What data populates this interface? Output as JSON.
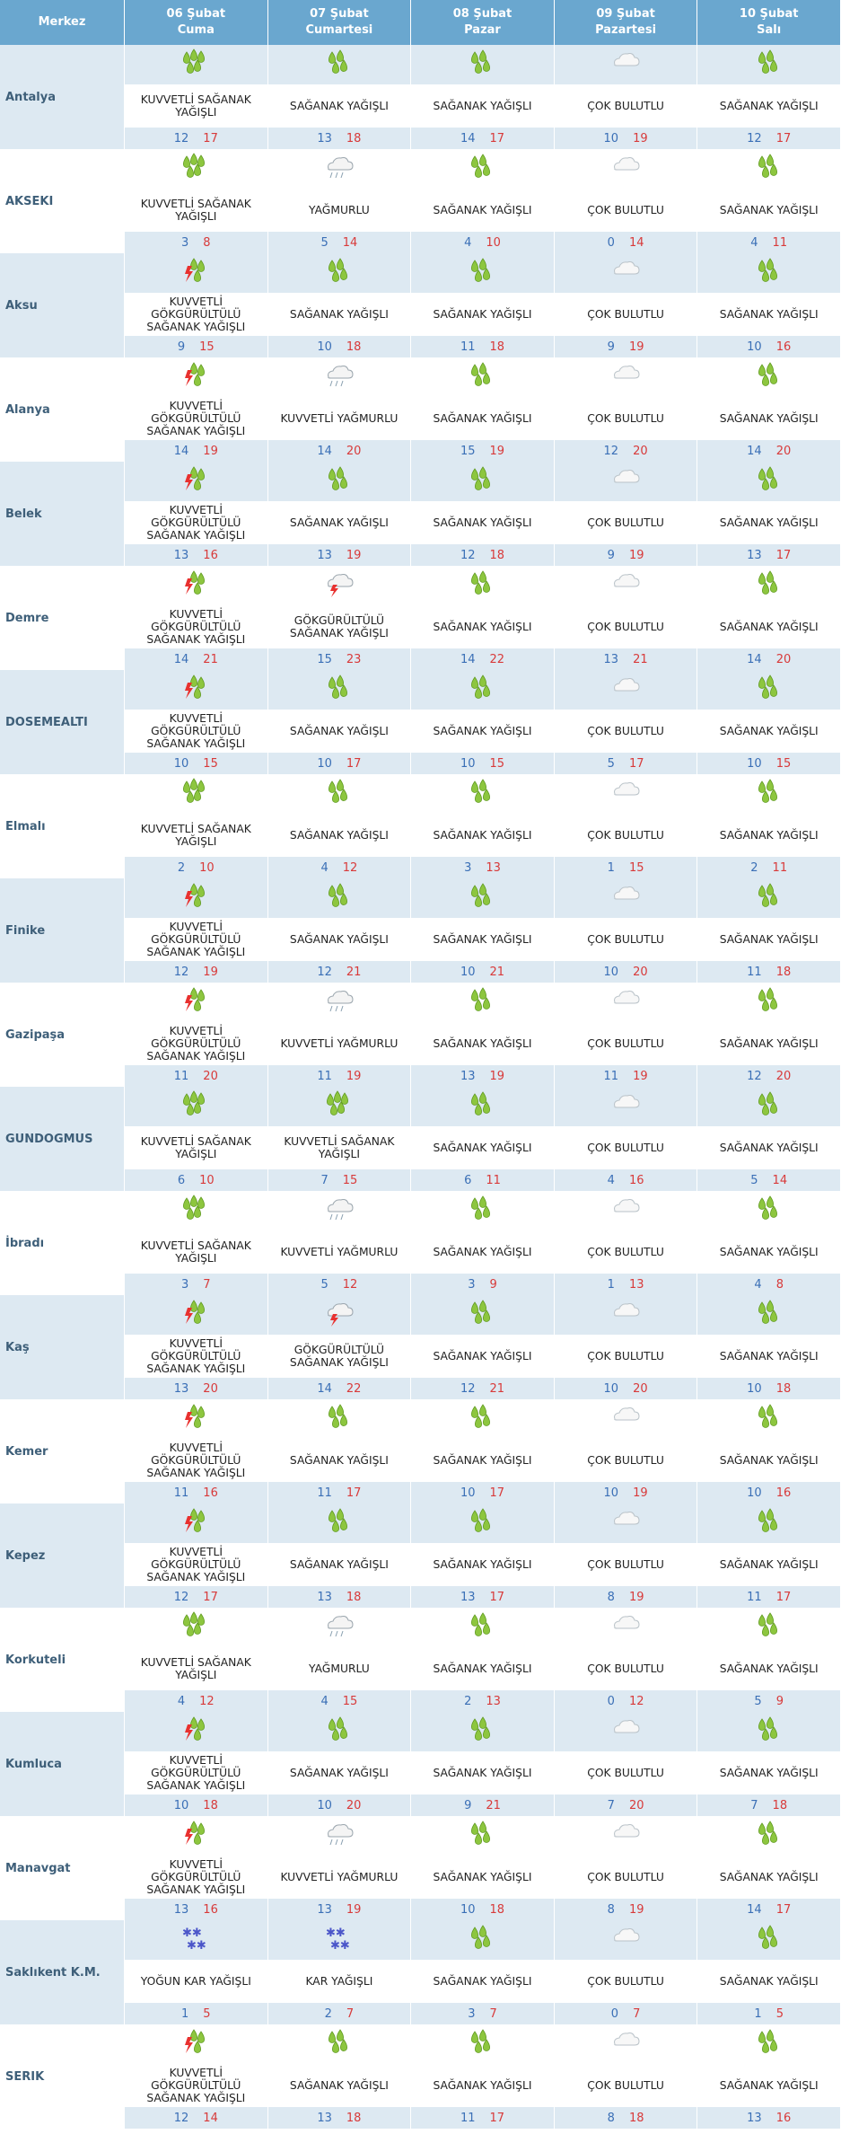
{
  "header": {
    "merkez": "Merkez",
    "days": [
      {
        "date": "06 Şubat",
        "day": "Cuma"
      },
      {
        "date": "07 Şubat",
        "day": "Cumartesi"
      },
      {
        "date": "08 Şubat",
        "day": "Pazar"
      },
      {
        "date": "09 Şubat",
        "day": "Pazartesi"
      },
      {
        "date": "10 Şubat",
        "day": "Salı"
      }
    ]
  },
  "colors": {
    "header_bg": "#6aa7cf",
    "row_shade": "#dde9f2",
    "min_temp": "#3a6fb6",
    "max_temp": "#d83a3a",
    "city": "#3e5f79"
  },
  "rows": [
    {
      "city": "Antalya",
      "days": [
        {
          "icon": "heavy-shower-icon",
          "desc": "KUVVETLİ SAĞANAK YAĞIŞLI",
          "min": "12",
          "max": "17"
        },
        {
          "icon": "shower-icon",
          "desc": "SAĞANAK YAĞIŞLI",
          "min": "13",
          "max": "18"
        },
        {
          "icon": "shower-icon",
          "desc": "SAĞANAK YAĞIŞLI",
          "min": "14",
          "max": "17"
        },
        {
          "icon": "cloudy-icon",
          "desc": "ÇOK BULUTLU",
          "min": "10",
          "max": "19"
        },
        {
          "icon": "shower-icon",
          "desc": "SAĞANAK YAĞIŞLI",
          "min": "12",
          "max": "17"
        }
      ]
    },
    {
      "city": "AKSEKI",
      "days": [
        {
          "icon": "heavy-shower-icon",
          "desc": "KUVVETLİ SAĞANAK YAĞIŞLI",
          "min": "3",
          "max": "8"
        },
        {
          "icon": "rain-icon",
          "desc": "YAĞMURLU",
          "min": "5",
          "max": "14"
        },
        {
          "icon": "shower-icon",
          "desc": "SAĞANAK YAĞIŞLI",
          "min": "4",
          "max": "10"
        },
        {
          "icon": "cloudy-icon",
          "desc": "ÇOK BULUTLU",
          "min": "0",
          "max": "14"
        },
        {
          "icon": "shower-icon",
          "desc": "SAĞANAK YAĞIŞLI",
          "min": "4",
          "max": "11"
        }
      ]
    },
    {
      "city": "Aksu",
      "days": [
        {
          "icon": "thunder-shower-icon",
          "desc": "KUVVETLİ GÖKGÜRÜLTÜLÜ SAĞANAK YAĞIŞLI",
          "min": "9",
          "max": "15"
        },
        {
          "icon": "shower-icon",
          "desc": "SAĞANAK YAĞIŞLI",
          "min": "10",
          "max": "18"
        },
        {
          "icon": "shower-icon",
          "desc": "SAĞANAK YAĞIŞLI",
          "min": "11",
          "max": "18"
        },
        {
          "icon": "cloudy-icon",
          "desc": "ÇOK BULUTLU",
          "min": "9",
          "max": "19"
        },
        {
          "icon": "shower-icon",
          "desc": "SAĞANAK YAĞIŞLI",
          "min": "10",
          "max": "16"
        }
      ]
    },
    {
      "city": "Alanya",
      "days": [
        {
          "icon": "thunder-shower-icon",
          "desc": "KUVVETLİ GÖKGÜRÜLTÜLÜ SAĞANAK YAĞIŞLI",
          "min": "14",
          "max": "19"
        },
        {
          "icon": "rain-icon",
          "desc": "KUVVETLİ YAĞMURLU",
          "min": "14",
          "max": "20"
        },
        {
          "icon": "shower-icon",
          "desc": "SAĞANAK YAĞIŞLI",
          "min": "15",
          "max": "19"
        },
        {
          "icon": "cloudy-icon",
          "desc": "ÇOK BULUTLU",
          "min": "12",
          "max": "20"
        },
        {
          "icon": "shower-icon",
          "desc": "SAĞANAK YAĞIŞLI",
          "min": "14",
          "max": "20"
        }
      ]
    },
    {
      "city": "Belek",
      "days": [
        {
          "icon": "thunder-shower-icon",
          "desc": "KUVVETLİ GÖKGÜRÜLTÜLÜ SAĞANAK YAĞIŞLI",
          "min": "13",
          "max": "16"
        },
        {
          "icon": "shower-icon",
          "desc": "SAĞANAK YAĞIŞLI",
          "min": "13",
          "max": "19"
        },
        {
          "icon": "shower-icon",
          "desc": "SAĞANAK YAĞIŞLI",
          "min": "12",
          "max": "18"
        },
        {
          "icon": "cloudy-icon",
          "desc": "ÇOK BULUTLU",
          "min": "9",
          "max": "19"
        },
        {
          "icon": "shower-icon",
          "desc": "SAĞANAK YAĞIŞLI",
          "min": "13",
          "max": "17"
        }
      ]
    },
    {
      "city": "Demre",
      "days": [
        {
          "icon": "thunder-shower-icon",
          "desc": "KUVVETLİ GÖKGÜRÜLTÜLÜ SAĞANAK YAĞIŞLI",
          "min": "14",
          "max": "21"
        },
        {
          "icon": "thunder-rain-icon",
          "desc": "GÖKGÜRÜLTÜLÜ SAĞANAK YAĞIŞLI",
          "min": "15",
          "max": "23"
        },
        {
          "icon": "shower-icon",
          "desc": "SAĞANAK YAĞIŞLI",
          "min": "14",
          "max": "22"
        },
        {
          "icon": "cloudy-icon",
          "desc": "ÇOK BULUTLU",
          "min": "13",
          "max": "21"
        },
        {
          "icon": "shower-icon",
          "desc": "SAĞANAK YAĞIŞLI",
          "min": "14",
          "max": "20"
        }
      ]
    },
    {
      "city": "DOSEMEALTI",
      "days": [
        {
          "icon": "thunder-shower-icon",
          "desc": "KUVVETLİ GÖKGÜRÜLTÜLÜ SAĞANAK YAĞIŞLI",
          "min": "10",
          "max": "15"
        },
        {
          "icon": "shower-icon",
          "desc": "SAĞANAK YAĞIŞLI",
          "min": "10",
          "max": "17"
        },
        {
          "icon": "shower-icon",
          "desc": "SAĞANAK YAĞIŞLI",
          "min": "10",
          "max": "15"
        },
        {
          "icon": "cloudy-icon",
          "desc": "ÇOK BULUTLU",
          "min": "5",
          "max": "17"
        },
        {
          "icon": "shower-icon",
          "desc": "SAĞANAK YAĞIŞLI",
          "min": "10",
          "max": "15"
        }
      ]
    },
    {
      "city": "Elmalı",
      "days": [
        {
          "icon": "heavy-shower-icon",
          "desc": "KUVVETLİ SAĞANAK YAĞIŞLI",
          "min": "2",
          "max": "10"
        },
        {
          "icon": "shower-icon",
          "desc": "SAĞANAK YAĞIŞLI",
          "min": "4",
          "max": "12"
        },
        {
          "icon": "shower-icon",
          "desc": "SAĞANAK YAĞIŞLI",
          "min": "3",
          "max": "13"
        },
        {
          "icon": "cloudy-icon",
          "desc": "ÇOK BULUTLU",
          "min": "1",
          "max": "15"
        },
        {
          "icon": "shower-icon",
          "desc": "SAĞANAK YAĞIŞLI",
          "min": "2",
          "max": "11"
        }
      ]
    },
    {
      "city": "Finike",
      "days": [
        {
          "icon": "thunder-shower-icon",
          "desc": "KUVVETLİ GÖKGÜRÜLTÜLÜ SAĞANAK YAĞIŞLI",
          "min": "12",
          "max": "19"
        },
        {
          "icon": "shower-icon",
          "desc": "SAĞANAK YAĞIŞLI",
          "min": "12",
          "max": "21"
        },
        {
          "icon": "shower-icon",
          "desc": "SAĞANAK YAĞIŞLI",
          "min": "10",
          "max": "21"
        },
        {
          "icon": "cloudy-icon",
          "desc": "ÇOK BULUTLU",
          "min": "10",
          "max": "20"
        },
        {
          "icon": "shower-icon",
          "desc": "SAĞANAK YAĞIŞLI",
          "min": "11",
          "max": "18"
        }
      ]
    },
    {
      "city": "Gazipaşa",
      "days": [
        {
          "icon": "thunder-shower-icon",
          "desc": "KUVVETLİ GÖKGÜRÜLTÜLÜ SAĞANAK YAĞIŞLI",
          "min": "11",
          "max": "20"
        },
        {
          "icon": "rain-icon",
          "desc": "KUVVETLİ YAĞMURLU",
          "min": "11",
          "max": "19"
        },
        {
          "icon": "shower-icon",
          "desc": "SAĞANAK YAĞIŞLI",
          "min": "13",
          "max": "19"
        },
        {
          "icon": "cloudy-icon",
          "desc": "ÇOK BULUTLU",
          "min": "11",
          "max": "19"
        },
        {
          "icon": "shower-icon",
          "desc": "SAĞANAK YAĞIŞLI",
          "min": "12",
          "max": "20"
        }
      ]
    },
    {
      "city": "GUNDOGMUS",
      "days": [
        {
          "icon": "heavy-shower-icon",
          "desc": "KUVVETLİ SAĞANAK YAĞIŞLI",
          "min": "6",
          "max": "10"
        },
        {
          "icon": "heavy-shower-icon",
          "desc": "KUVVETLİ SAĞANAK YAĞIŞLI",
          "min": "7",
          "max": "15"
        },
        {
          "icon": "shower-icon",
          "desc": "SAĞANAK YAĞIŞLI",
          "min": "6",
          "max": "11"
        },
        {
          "icon": "cloudy-icon",
          "desc": "ÇOK BULUTLU",
          "min": "4",
          "max": "16"
        },
        {
          "icon": "shower-icon",
          "desc": "SAĞANAK YAĞIŞLI",
          "min": "5",
          "max": "14"
        }
      ]
    },
    {
      "city": "İbradı",
      "days": [
        {
          "icon": "heavy-shower-icon",
          "desc": "KUVVETLİ SAĞANAK YAĞIŞLI",
          "min": "3",
          "max": "7"
        },
        {
          "icon": "rain-icon",
          "desc": "KUVVETLİ YAĞMURLU",
          "min": "5",
          "max": "12"
        },
        {
          "icon": "shower-icon",
          "desc": "SAĞANAK YAĞIŞLI",
          "min": "3",
          "max": "9"
        },
        {
          "icon": "cloudy-icon",
          "desc": "ÇOK BULUTLU",
          "min": "1",
          "max": "13"
        },
        {
          "icon": "shower-icon",
          "desc": "SAĞANAK YAĞIŞLI",
          "min": "4",
          "max": "8"
        }
      ]
    },
    {
      "city": "Kaş",
      "days": [
        {
          "icon": "thunder-shower-icon",
          "desc": "KUVVETLİ GÖKGÜRÜLTÜLÜ SAĞANAK YAĞIŞLI",
          "min": "13",
          "max": "20"
        },
        {
          "icon": "thunder-rain-icon",
          "desc": "GÖKGÜRÜLTÜLÜ SAĞANAK YAĞIŞLI",
          "min": "14",
          "max": "22"
        },
        {
          "icon": "shower-icon",
          "desc": "SAĞANAK YAĞIŞLI",
          "min": "12",
          "max": "21"
        },
        {
          "icon": "cloudy-icon",
          "desc": "ÇOK BULUTLU",
          "min": "10",
          "max": "20"
        },
        {
          "icon": "shower-icon",
          "desc": "SAĞANAK YAĞIŞLI",
          "min": "10",
          "max": "18"
        }
      ]
    },
    {
      "city": "Kemer",
      "days": [
        {
          "icon": "thunder-shower-icon",
          "desc": "KUVVETLİ GÖKGÜRÜLTÜLÜ SAĞANAK YAĞIŞLI",
          "min": "11",
          "max": "16"
        },
        {
          "icon": "shower-icon",
          "desc": "SAĞANAK YAĞIŞLI",
          "min": "11",
          "max": "17"
        },
        {
          "icon": "shower-icon",
          "desc": "SAĞANAK YAĞIŞLI",
          "min": "10",
          "max": "17"
        },
        {
          "icon": "cloudy-icon",
          "desc": "ÇOK BULUTLU",
          "min": "10",
          "max": "19"
        },
        {
          "icon": "shower-icon",
          "desc": "SAĞANAK YAĞIŞLI",
          "min": "10",
          "max": "16"
        }
      ]
    },
    {
      "city": "Kepez",
      "days": [
        {
          "icon": "thunder-shower-icon",
          "desc": "KUVVETLİ GÖKGÜRÜLTÜLÜ SAĞANAK YAĞIŞLI",
          "min": "12",
          "max": "17"
        },
        {
          "icon": "shower-icon",
          "desc": "SAĞANAK YAĞIŞLI",
          "min": "13",
          "max": "18"
        },
        {
          "icon": "shower-icon",
          "desc": "SAĞANAK YAĞIŞLI",
          "min": "13",
          "max": "17"
        },
        {
          "icon": "cloudy-icon",
          "desc": "ÇOK BULUTLU",
          "min": "8",
          "max": "19"
        },
        {
          "icon": "shower-icon",
          "desc": "SAĞANAK YAĞIŞLI",
          "min": "11",
          "max": "17"
        }
      ]
    },
    {
      "city": "Korkuteli",
      "days": [
        {
          "icon": "heavy-shower-icon",
          "desc": "KUVVETLİ SAĞANAK YAĞIŞLI",
          "min": "4",
          "max": "12"
        },
        {
          "icon": "rain-icon",
          "desc": "YAĞMURLU",
          "min": "4",
          "max": "15"
        },
        {
          "icon": "shower-icon",
          "desc": "SAĞANAK YAĞIŞLI",
          "min": "2",
          "max": "13"
        },
        {
          "icon": "cloudy-icon",
          "desc": "ÇOK BULUTLU",
          "min": "0",
          "max": "12"
        },
        {
          "icon": "shower-icon",
          "desc": "SAĞANAK YAĞIŞLI",
          "min": "5",
          "max": "9"
        }
      ]
    },
    {
      "city": "Kumluca",
      "days": [
        {
          "icon": "thunder-shower-icon",
          "desc": "KUVVETLİ GÖKGÜRÜLTÜLÜ SAĞANAK YAĞIŞLI",
          "min": "10",
          "max": "18"
        },
        {
          "icon": "shower-icon",
          "desc": "SAĞANAK YAĞIŞLI",
          "min": "10",
          "max": "20"
        },
        {
          "icon": "shower-icon",
          "desc": "SAĞANAK YAĞIŞLI",
          "min": "9",
          "max": "21"
        },
        {
          "icon": "cloudy-icon",
          "desc": "ÇOK BULUTLU",
          "min": "7",
          "max": "20"
        },
        {
          "icon": "shower-icon",
          "desc": "SAĞANAK YAĞIŞLI",
          "min": "7",
          "max": "18"
        }
      ]
    },
    {
      "city": "Manavgat",
      "days": [
        {
          "icon": "thunder-shower-icon",
          "desc": "KUVVETLİ GÖKGÜRÜLTÜLÜ SAĞANAK YAĞIŞLI",
          "min": "13",
          "max": "16"
        },
        {
          "icon": "rain-icon",
          "desc": "KUVVETLİ YAĞMURLU",
          "min": "13",
          "max": "19"
        },
        {
          "icon": "shower-icon",
          "desc": "SAĞANAK YAĞIŞLI",
          "min": "10",
          "max": "18"
        },
        {
          "icon": "cloudy-icon",
          "desc": "ÇOK BULUTLU",
          "min": "8",
          "max": "19"
        },
        {
          "icon": "shower-icon",
          "desc": "SAĞANAK YAĞIŞLI",
          "min": "14",
          "max": "17"
        }
      ]
    },
    {
      "city": "Saklıkent K.M.",
      "days": [
        {
          "icon": "snow-icon",
          "desc": "YOĞUN KAR YAĞIŞLI",
          "min": "1",
          "max": "5"
        },
        {
          "icon": "snow-icon",
          "desc": "KAR YAĞIŞLI",
          "min": "2",
          "max": "7"
        },
        {
          "icon": "shower-icon",
          "desc": "SAĞANAK YAĞIŞLI",
          "min": "3",
          "max": "7"
        },
        {
          "icon": "cloudy-icon",
          "desc": "ÇOK BULUTLU",
          "min": "0",
          "max": "7"
        },
        {
          "icon": "shower-icon",
          "desc": "SAĞANAK YAĞIŞLI",
          "min": "1",
          "max": "5"
        }
      ]
    },
    {
      "city": "SERIK",
      "days": [
        {
          "icon": "thunder-shower-icon",
          "desc": "KUVVETLİ GÖKGÜRÜLTÜLÜ SAĞANAK YAĞIŞLI",
          "min": "12",
          "max": "14"
        },
        {
          "icon": "shower-icon",
          "desc": "SAĞANAK YAĞIŞLI",
          "min": "13",
          "max": "18"
        },
        {
          "icon": "shower-icon",
          "desc": "SAĞANAK YAĞIŞLI",
          "min": "11",
          "max": "17"
        },
        {
          "icon": "cloudy-icon",
          "desc": "ÇOK BULUTLU",
          "min": "8",
          "max": "18"
        },
        {
          "icon": "shower-icon",
          "desc": "SAĞANAK YAĞIŞLI",
          "min": "13",
          "max": "16"
        }
      ]
    }
  ]
}
